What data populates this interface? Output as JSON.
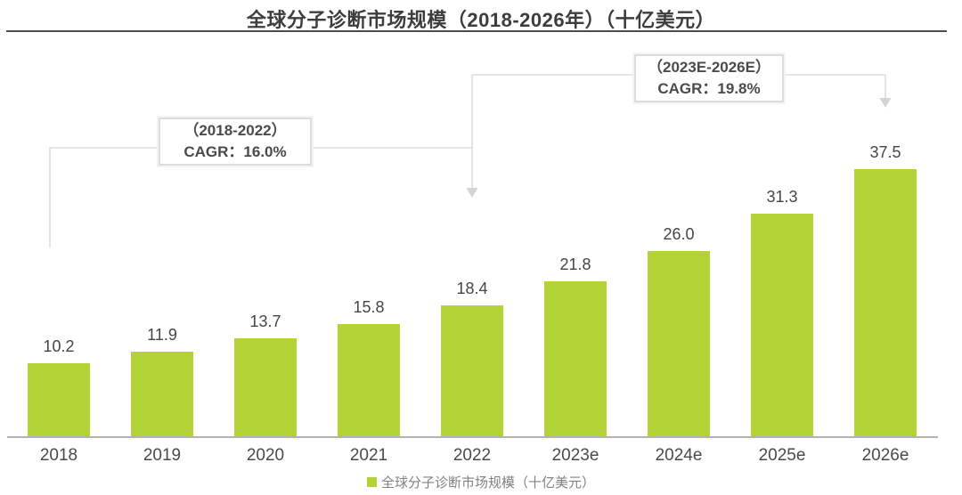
{
  "title": "全球分子诊断市场规模（2018-2026年）（十亿美元）",
  "chart_data": {
    "type": "bar",
    "title": "全球分子诊断市场规模（2018-2026年）（十亿美元）",
    "categories": [
      "2018",
      "2019",
      "2020",
      "2021",
      "2022",
      "2023e",
      "2024e",
      "2025e",
      "2026e"
    ],
    "values": [
      10.2,
      11.9,
      13.7,
      15.8,
      18.4,
      21.8,
      26.0,
      31.3,
      37.5
    ],
    "value_labels": [
      "10.2",
      "11.9",
      "13.7",
      "15.8",
      "18.4",
      "21.8",
      "26.0",
      "31.3",
      "37.5"
    ],
    "series_name": "全球分子诊断市场规模（十亿美元）",
    "unit": "十亿美元",
    "ylim": [
      0,
      40
    ],
    "grid": false,
    "legend_position": "bottom",
    "annotations": [
      {
        "period": "（2018-2022）",
        "cagr": "CAGR：16.0%"
      },
      {
        "period": "（2023E-2026E）",
        "cagr": "CAGR：19.8%"
      }
    ]
  },
  "legend": {
    "label": "全球分子诊断市场规模（十亿美元）"
  },
  "colors": {
    "bar": "#b2d235",
    "axis_line": "#b3b3b3",
    "title_rule": "#4d4d4d",
    "bracket_line": "#dedede",
    "annotation_border": "#dcdcdc",
    "value_text": "#454545",
    "legend_text": "#818181"
  }
}
